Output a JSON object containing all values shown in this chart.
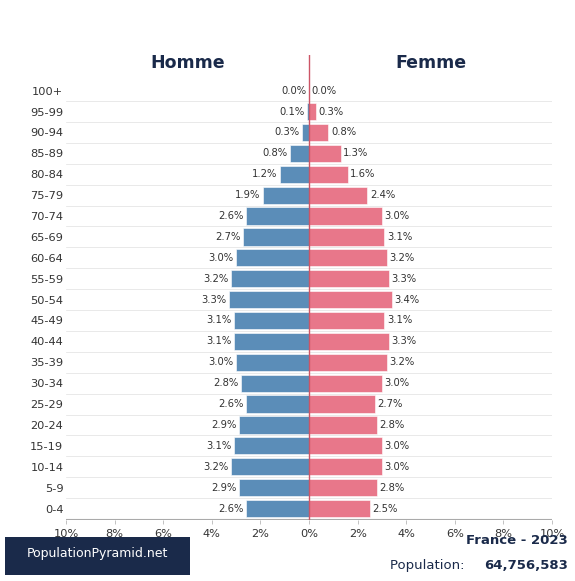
{
  "age_groups": [
    "0-4",
    "5-9",
    "10-14",
    "15-19",
    "20-24",
    "25-29",
    "30-34",
    "35-39",
    "40-44",
    "45-49",
    "50-54",
    "55-59",
    "60-64",
    "65-69",
    "70-74",
    "75-79",
    "80-84",
    "85-89",
    "90-94",
    "95-99",
    "100+"
  ],
  "male": [
    2.6,
    2.9,
    3.2,
    3.1,
    2.9,
    2.6,
    2.8,
    3.0,
    3.1,
    3.1,
    3.3,
    3.2,
    3.0,
    2.7,
    2.6,
    1.9,
    1.2,
    0.8,
    0.3,
    0.1,
    0.0
  ],
  "female": [
    2.5,
    2.8,
    3.0,
    3.0,
    2.8,
    2.7,
    3.0,
    3.2,
    3.3,
    3.1,
    3.4,
    3.3,
    3.2,
    3.1,
    3.0,
    2.4,
    1.6,
    1.3,
    0.8,
    0.3,
    0.0
  ],
  "male_color": "#5b8db8",
  "female_color": "#e8778a",
  "bar_height": 0.82,
  "xlim": 10,
  "title_country": "France - 2023",
  "title_population": "Population: ",
  "population_value": "64,756,583",
  "label_homme": "Homme",
  "label_femme": "Femme",
  "background_color": "#ffffff",
  "footer_bg": "#1a2a4a",
  "footer_text": "PopulationPyramid.net",
  "title_color": "#1a2a4a",
  "tick_label_color": "#555555",
  "bar_label_color": "#333333"
}
